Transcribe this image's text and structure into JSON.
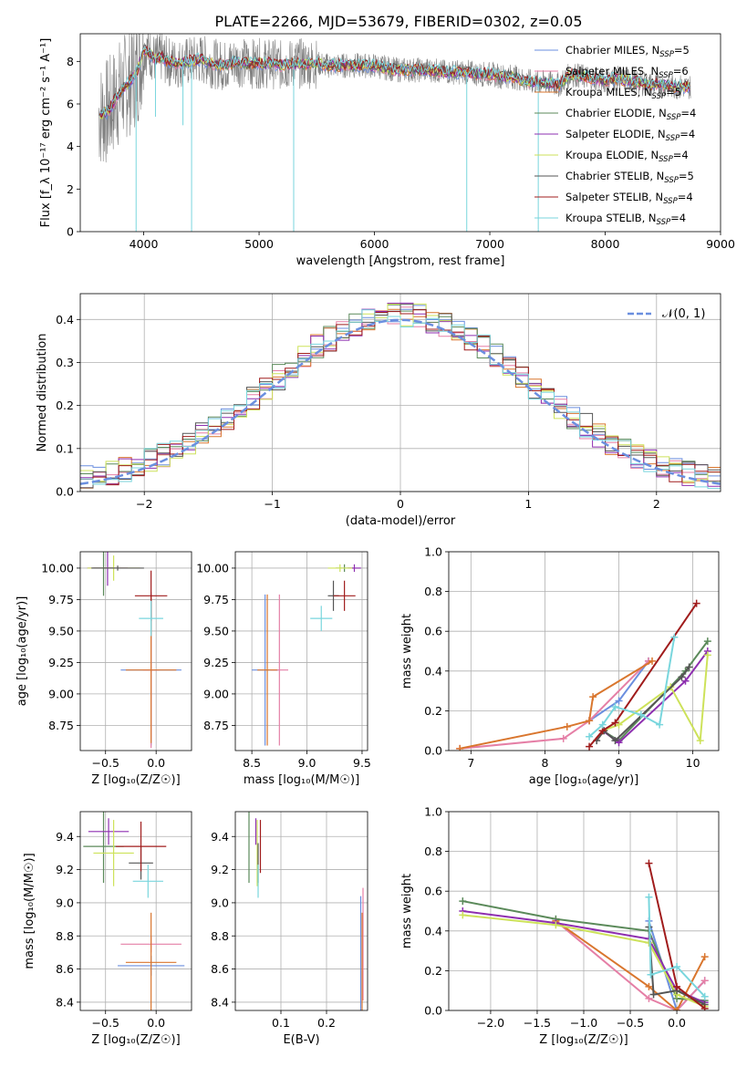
{
  "figure_title": "PLATE=2266, MJD=53679, FIBERID=0302, z=0.05",
  "colors": {
    "Chabrier MILES": "#6b8fdf",
    "Salpeter MILES": "#e57fa6",
    "Kroupa MILES": "#d9762e",
    "Chabrier ELODIE": "#5b8a5a",
    "Salpeter ELODIE": "#8e2fb0",
    "Kroupa ELODIE": "#cde25a",
    "Chabrier STELIB": "#555555",
    "Salpeter STELIB": "#a01c1c",
    "Kroupa STELIB": "#79d6dd",
    "data": "#808080"
  },
  "chart_data": [
    {
      "id": "spectrum",
      "type": "line",
      "title": "PLATE=2266, MJD=53679, FIBERID=0302, z=0.05",
      "xlabel": "wavelength [Angstrom, rest frame]",
      "ylabel": "Flux [f_λ 10⁻¹⁷ erg cm⁻² s⁻¹ A⁻¹]",
      "xlim": [
        3450,
        9000
      ],
      "ylim": [
        0,
        9.3
      ],
      "xticks": [
        4000,
        5000,
        6000,
        7000,
        8000,
        9000
      ],
      "yticks": [
        0,
        2,
        4,
        6,
        8
      ],
      "legend": [
        {
          "label": "Chabrier MILES, N",
          "sub": "SSP",
          "suffix": "=5"
        },
        {
          "label": "Salpeter MILES, N",
          "sub": "SSP",
          "suffix": "=6"
        },
        {
          "label": "Kroupa MILES, N",
          "sub": "SSP",
          "suffix": "=5"
        },
        {
          "label": "Chabrier ELODIE, N",
          "sub": "SSP",
          "suffix": "=4"
        },
        {
          "label": "Salpeter ELODIE, N",
          "sub": "SSP",
          "suffix": "=4"
        },
        {
          "label": "Kroupa ELODIE, N",
          "sub": "SSP",
          "suffix": "=4"
        },
        {
          "label": "Chabrier STELIB, N",
          "sub": "SSP",
          "suffix": "=5"
        },
        {
          "label": "Salpeter STELIB, N",
          "sub": "SSP",
          "suffix": "=4"
        },
        {
          "label": "Kroupa STELIB, N",
          "sub": "SSP",
          "suffix": "=4"
        }
      ],
      "legend_position": "right",
      "model_continuum": {
        "x": [
          3650,
          3700,
          3750,
          3800,
          3850,
          3900,
          3950,
          4000,
          4050,
          4100,
          4150,
          4200,
          4300,
          4400,
          4500,
          4600,
          4700,
          4800,
          4900,
          5000,
          5100,
          5200,
          5300,
          5400,
          5500,
          5600,
          5700,
          5800,
          5900,
          6000,
          6100,
          6200,
          6300,
          6400,
          6500,
          6600,
          6700,
          6800,
          6900,
          7000,
          7100,
          7200,
          7300,
          7400,
          7500,
          7600,
          7700,
          7800,
          7900,
          8000,
          8100,
          8200,
          8300,
          8400,
          8500,
          8600,
          8700,
          8750
        ],
        "y": [
          5.5,
          5.7,
          6.2,
          6.6,
          6.9,
          7.2,
          7.6,
          8.6,
          8.4,
          8.1,
          8.2,
          8.0,
          7.9,
          8.0,
          8.1,
          7.9,
          7.8,
          8.0,
          7.9,
          7.9,
          7.9,
          7.8,
          7.9,
          7.9,
          7.9,
          7.8,
          7.8,
          7.8,
          7.8,
          7.8,
          7.7,
          7.6,
          7.6,
          7.6,
          7.6,
          7.5,
          7.5,
          7.5,
          7.4,
          7.4,
          7.3,
          7.3,
          7.1,
          7.0,
          7.0,
          6.9,
          7.4,
          7.3,
          7.2,
          7.1,
          7.2,
          7.1,
          7.0,
          6.9,
          6.9,
          6.8,
          6.8,
          6.8
        ]
      },
      "absorption_lines": [
        {
          "x": 3934,
          "y": 0.0
        },
        {
          "x": 4102,
          "y": 5.4
        },
        {
          "x": 4340,
          "y": 5.0
        },
        {
          "x": 4415,
          "y": 0.0
        },
        {
          "x": 5300,
          "y": 0.0
        },
        {
          "x": 6800,
          "y": 0.0
        },
        {
          "x": 7420,
          "y": 0.0
        }
      ]
    },
    {
      "id": "residuals",
      "type": "histogram",
      "xlabel": "(data-model)/error",
      "ylabel": "Normed distribution",
      "xlim": [
        -2.5,
        2.5
      ],
      "ylim": [
        0,
        0.46
      ],
      "xticks": [
        -2,
        -1,
        0,
        1,
        2
      ],
      "yticks": [
        0.0,
        0.1,
        0.2,
        0.3,
        0.4
      ],
      "bin_width": 0.1,
      "reference_curve": {
        "label": "𝒩(0, 1)",
        "mean": 0,
        "sigma": 1
      },
      "legend_position": "upper right"
    },
    {
      "id": "age_vs_Z",
      "type": "errorbar",
      "xlabel": "Z [log₁₀(Z/Z☉)]",
      "ylabel": "age  [log₁₀(age/yr)]",
      "xlim": [
        -0.75,
        0.35
      ],
      "ylim": [
        8.55,
        10.13
      ],
      "xticks": [
        -0.5,
        0.0
      ],
      "yticks": [
        8.75,
        9.0,
        9.25,
        9.5,
        9.75,
        10.0
      ],
      "points": [
        {
          "series": "Chabrier MILES",
          "x": -0.05,
          "y": 9.19,
          "xerr": 0.3,
          "yerr": 0.6
        },
        {
          "series": "Salpeter MILES",
          "x": -0.05,
          "y": 9.19,
          "xerr": 0.08,
          "yerr": 0.62
        },
        {
          "series": "Kroupa MILES",
          "x": -0.05,
          "y": 9.19,
          "xerr": 0.25,
          "yerr": 0.58
        },
        {
          "series": "Chabrier ELODIE",
          "x": -0.52,
          "y": 10.0,
          "xerr": 0.1,
          "yerr": 0.22
        },
        {
          "series": "Salpeter ELODIE",
          "x": -0.48,
          "y": 10.0,
          "xerr": 0.2,
          "yerr": 0.14
        },
        {
          "series": "Kroupa ELODIE",
          "x": -0.42,
          "y": 10.0,
          "xerr": 0.26,
          "yerr": 0.1
        },
        {
          "series": "Chabrier STELIB",
          "x": -0.38,
          "y": 10.0,
          "xerr": 0.26,
          "yerr": 0.02
        },
        {
          "series": "Salpeter STELIB",
          "x": -0.05,
          "y": 9.78,
          "xerr": 0.16,
          "yerr": 0.2
        },
        {
          "series": "Kroupa STELIB",
          "x": -0.05,
          "y": 9.6,
          "xerr": 0.12,
          "yerr": 0.14
        }
      ]
    },
    {
      "id": "age_vs_mass",
      "type": "errorbar",
      "xlabel": "mass [log₁₀(M/M☉)]",
      "ylabel": "",
      "xlim": [
        8.35,
        9.55
      ],
      "ylim": [
        8.55,
        10.13
      ],
      "xticks": [
        8.5,
        9.0,
        9.5
      ],
      "yticks": [
        8.75,
        9.0,
        9.25,
        9.5,
        9.75,
        10.0
      ],
      "points": [
        {
          "series": "Chabrier MILES",
          "x": 8.62,
          "y": 9.19,
          "xerr": 0.12,
          "yerr": 0.6
        },
        {
          "series": "Salpeter MILES",
          "x": 8.75,
          "y": 9.19,
          "xerr": 0.08,
          "yerr": 0.6
        },
        {
          "series": "Kroupa MILES",
          "x": 8.64,
          "y": 9.19,
          "xerr": 0.09,
          "yerr": 0.6
        },
        {
          "series": "Chabrier ELODIE",
          "x": 9.34,
          "y": 10.0,
          "xerr": 0.08,
          "yerr": 0.03
        },
        {
          "series": "Salpeter ELODIE",
          "x": 9.43,
          "y": 10.0,
          "xerr": 0.06,
          "yerr": 0.03
        },
        {
          "series": "Kroupa ELODIE",
          "x": 9.3,
          "y": 10.0,
          "xerr": 0.11,
          "yerr": 0.03
        },
        {
          "series": "Chabrier STELIB",
          "x": 9.24,
          "y": 9.78,
          "xerr": 0.05,
          "yerr": 0.12
        },
        {
          "series": "Salpeter STELIB",
          "x": 9.34,
          "y": 9.78,
          "xerr": 0.1,
          "yerr": 0.12
        },
        {
          "series": "Kroupa STELIB",
          "x": 9.13,
          "y": 9.6,
          "xerr": 0.1,
          "yerr": 0.1
        }
      ]
    },
    {
      "id": "mass_weight_vs_age",
      "type": "line",
      "xlabel": "age  [log₁₀(age/yr)]",
      "ylabel": "mass weight",
      "xlim": [
        6.7,
        10.35
      ],
      "ylim": [
        0,
        1.0
      ],
      "xticks": [
        7,
        8,
        9,
        10
      ],
      "yticks": [
        0.0,
        0.2,
        0.4,
        0.6,
        0.8,
        1.0
      ],
      "series": [
        {
          "name": "Chabrier MILES",
          "x": [
            8.6,
            9.0,
            9.4
          ],
          "y": [
            0.15,
            0.25,
            0.45
          ]
        },
        {
          "name": "Salpeter MILES",
          "x": [
            6.85,
            8.25,
            8.6,
            9.4
          ],
          "y": [
            0.01,
            0.06,
            0.15,
            0.45
          ]
        },
        {
          "name": "Kroupa MILES",
          "x": [
            6.85,
            8.3,
            8.6,
            8.65,
            9.45
          ],
          "y": [
            0.01,
            0.12,
            0.15,
            0.27,
            0.45
          ]
        },
        {
          "name": "Chabrier ELODIE",
          "x": [
            8.78,
            9.0,
            9.9,
            10.2
          ],
          "y": [
            0.1,
            0.05,
            0.4,
            0.55
          ]
        },
        {
          "name": "Salpeter ELODIE",
          "x": [
            8.78,
            9.0,
            9.9,
            10.2
          ],
          "y": [
            0.1,
            0.04,
            0.35,
            0.5
          ]
        },
        {
          "name": "Kroupa ELODIE",
          "x": [
            8.78,
            9.0,
            9.7,
            10.1,
            10.2
          ],
          "y": [
            0.1,
            0.13,
            0.32,
            0.05,
            0.48
          ]
        },
        {
          "name": "Chabrier STELIB",
          "x": [
            8.7,
            8.8,
            8.95,
            9.85,
            9.95
          ],
          "y": [
            0.05,
            0.1,
            0.05,
            0.37,
            0.42
          ]
        },
        {
          "name": "Salpeter STELIB",
          "x": [
            8.6,
            8.78,
            8.95,
            10.05
          ],
          "y": [
            0.02,
            0.1,
            0.14,
            0.74
          ]
        },
        {
          "name": "Kroupa STELIB",
          "x": [
            8.6,
            8.78,
            8.95,
            9.3,
            9.55,
            9.75
          ],
          "y": [
            0.07,
            0.13,
            0.22,
            0.18,
            0.13,
            0.57
          ]
        }
      ]
    },
    {
      "id": "mass_vs_Z",
      "type": "errorbar",
      "xlabel": "Z [log₁₀(Z/Z☉)]",
      "ylabel": "mass [log₁₀(M/M☉)]",
      "xlim": [
        -0.75,
        0.35
      ],
      "ylim": [
        8.35,
        9.55
      ],
      "xticks": [
        -0.5,
        0.0
      ],
      "yticks": [
        8.4,
        8.6,
        8.8,
        9.0,
        9.2,
        9.4
      ],
      "points": [
        {
          "series": "Chabrier MILES",
          "x": -0.05,
          "y": 8.62,
          "xerr": 0.33,
          "yerr": 0.06
        },
        {
          "series": "Salpeter MILES",
          "x": -0.05,
          "y": 8.75,
          "xerr": 0.3,
          "yerr": 0.05
        },
        {
          "series": "Kroupa MILES",
          "x": -0.05,
          "y": 8.64,
          "xerr": 0.25,
          "yerr": 0.3
        },
        {
          "series": "Chabrier ELODIE",
          "x": -0.52,
          "y": 9.34,
          "xerr": 0.2,
          "yerr": 0.22
        },
        {
          "series": "Salpeter ELODIE",
          "x": -0.47,
          "y": 9.43,
          "xerr": 0.2,
          "yerr": 0.08
        },
        {
          "series": "Kroupa ELODIE",
          "x": -0.42,
          "y": 9.3,
          "xerr": 0.2,
          "yerr": 0.2
        },
        {
          "series": "Chabrier STELIB",
          "x": -0.15,
          "y": 9.24,
          "xerr": 0.12,
          "yerr": 0.1
        },
        {
          "series": "Salpeter STELIB",
          "x": -0.15,
          "y": 9.34,
          "xerr": 0.25,
          "yerr": 0.15
        },
        {
          "series": "Kroupa STELIB",
          "x": -0.08,
          "y": 9.13,
          "xerr": 0.15,
          "yerr": 0.1
        }
      ]
    },
    {
      "id": "mass_vs_EBV",
      "type": "errorbar",
      "xlabel": "E(B-V)",
      "ylabel": "",
      "xlim": [
        0.0,
        0.29
      ],
      "ylim": [
        8.35,
        9.55
      ],
      "xticks": [
        0.1,
        0.2
      ],
      "yticks": [
        8.4,
        8.6,
        8.8,
        9.0,
        9.2,
        9.4
      ],
      "points": [
        {
          "series": "Chabrier MILES",
          "x": 0.275,
          "y": 8.62,
          "xerr": 0.0,
          "yerr": 0.42
        },
        {
          "series": "Salpeter MILES",
          "x": 0.28,
          "y": 8.75,
          "xerr": 0.0,
          "yerr": 0.34
        },
        {
          "series": "Kroupa MILES",
          "x": 0.278,
          "y": 8.64,
          "xerr": 0.0,
          "yerr": 0.3
        },
        {
          "series": "Chabrier ELODIE",
          "x": 0.03,
          "y": 9.34,
          "xerr": 0.0,
          "yerr": 0.22
        },
        {
          "series": "Salpeter ELODIE",
          "x": 0.045,
          "y": 9.43,
          "xerr": 0.0,
          "yerr": 0.08
        },
        {
          "series": "Kroupa ELODIE",
          "x": 0.048,
          "y": 9.3,
          "xerr": 0.0,
          "yerr": 0.2
        },
        {
          "series": "Chabrier STELIB",
          "x": 0.05,
          "y": 9.24,
          "xerr": 0.0,
          "yerr": 0.12
        },
        {
          "series": "Salpeter STELIB",
          "x": 0.055,
          "y": 9.34,
          "xerr": 0.0,
          "yerr": 0.16
        },
        {
          "series": "Kroupa STELIB",
          "x": 0.05,
          "y": 9.13,
          "xerr": 0.0,
          "yerr": 0.1
        }
      ]
    },
    {
      "id": "mass_weight_vs_Z",
      "type": "line",
      "xlabel": "Z [log₁₀(Z/Z☉)]",
      "ylabel": "mass weight",
      "xlim": [
        -2.45,
        0.45
      ],
      "ylim": [
        0,
        1.0
      ],
      "xticks": [
        -2.0,
        -1.5,
        -1.0,
        -0.5,
        0.0
      ],
      "yticks": [
        0.0,
        0.2,
        0.4,
        0.6,
        0.8,
        1.0
      ],
      "series": [
        {
          "name": "Chabrier MILES",
          "x": [
            -0.3,
            0.0,
            0.3
          ],
          "y": [
            0.45,
            0.0,
            0.15
          ]
        },
        {
          "name": "Salpeter MILES",
          "x": [
            -1.3,
            -0.3,
            0.0,
            0.3
          ],
          "y": [
            0.45,
            0.06,
            0.0,
            0.15
          ]
        },
        {
          "name": "Kroupa MILES",
          "x": [
            -1.3,
            -0.3,
            0.0,
            0.3
          ],
          "y": [
            0.45,
            0.12,
            0.0,
            0.27
          ]
        },
        {
          "name": "Chabrier ELODIE",
          "x": [
            -2.3,
            -1.3,
            -0.3,
            0.0,
            0.3
          ],
          "y": [
            0.55,
            0.46,
            0.4,
            0.06,
            0.05
          ]
        },
        {
          "name": "Salpeter ELODIE",
          "x": [
            -2.3,
            -1.3,
            -0.3,
            0.0,
            0.3
          ],
          "y": [
            0.5,
            0.44,
            0.36,
            0.1,
            0.04
          ]
        },
        {
          "name": "Kroupa ELODIE",
          "x": [
            -2.3,
            -1.3,
            -0.3,
            0.0,
            0.3
          ],
          "y": [
            0.48,
            0.43,
            0.34,
            0.08,
            0.02
          ]
        },
        {
          "name": "Chabrier STELIB",
          "x": [
            -0.3,
            -0.25,
            0.0,
            0.3
          ],
          "y": [
            0.42,
            0.08,
            0.1,
            0.03
          ]
        },
        {
          "name": "Salpeter STELIB",
          "x": [
            -0.3,
            0.0,
            0.3
          ],
          "y": [
            0.74,
            0.12,
            0.01
          ]
        },
        {
          "name": "Kroupa STELIB",
          "x": [
            -0.3,
            -0.28,
            0.0,
            0.3
          ],
          "y": [
            0.57,
            0.18,
            0.22,
            0.07
          ]
        }
      ]
    }
  ]
}
